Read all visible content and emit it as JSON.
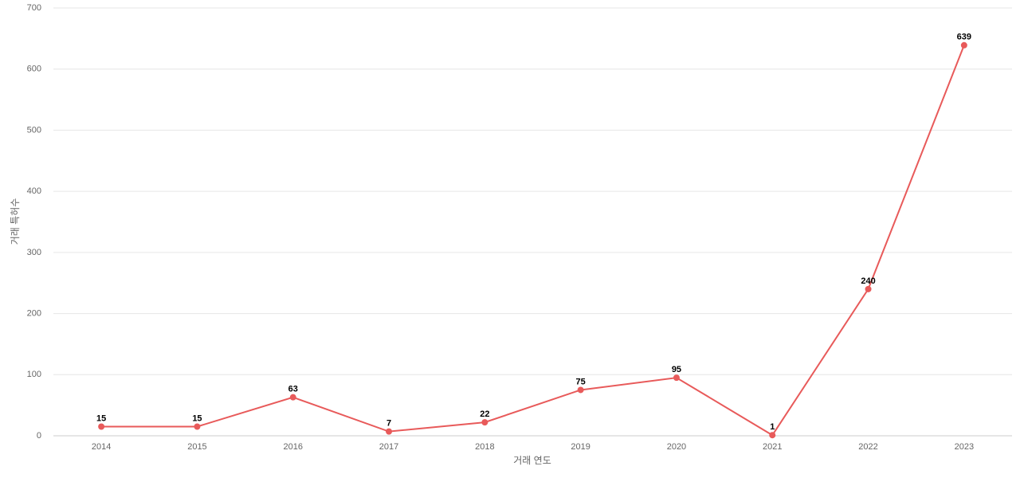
{
  "chart_data": {
    "type": "line",
    "x_label": "거래 연도",
    "y_label": "거래 특허수",
    "categories": [
      "2014",
      "2015",
      "2016",
      "2017",
      "2018",
      "2019",
      "2020",
      "2021",
      "2022",
      "2023"
    ],
    "series": [
      {
        "name": "거래 특허수",
        "color": "#e85a5a",
        "values": [
          15,
          15,
          63,
          7,
          22,
          75,
          95,
          1,
          240,
          639
        ]
      }
    ],
    "ylim": [
      0,
      700
    ],
    "yticks": [
      0,
      100,
      200,
      300,
      400,
      500,
      600,
      700
    ],
    "grid": true
  }
}
